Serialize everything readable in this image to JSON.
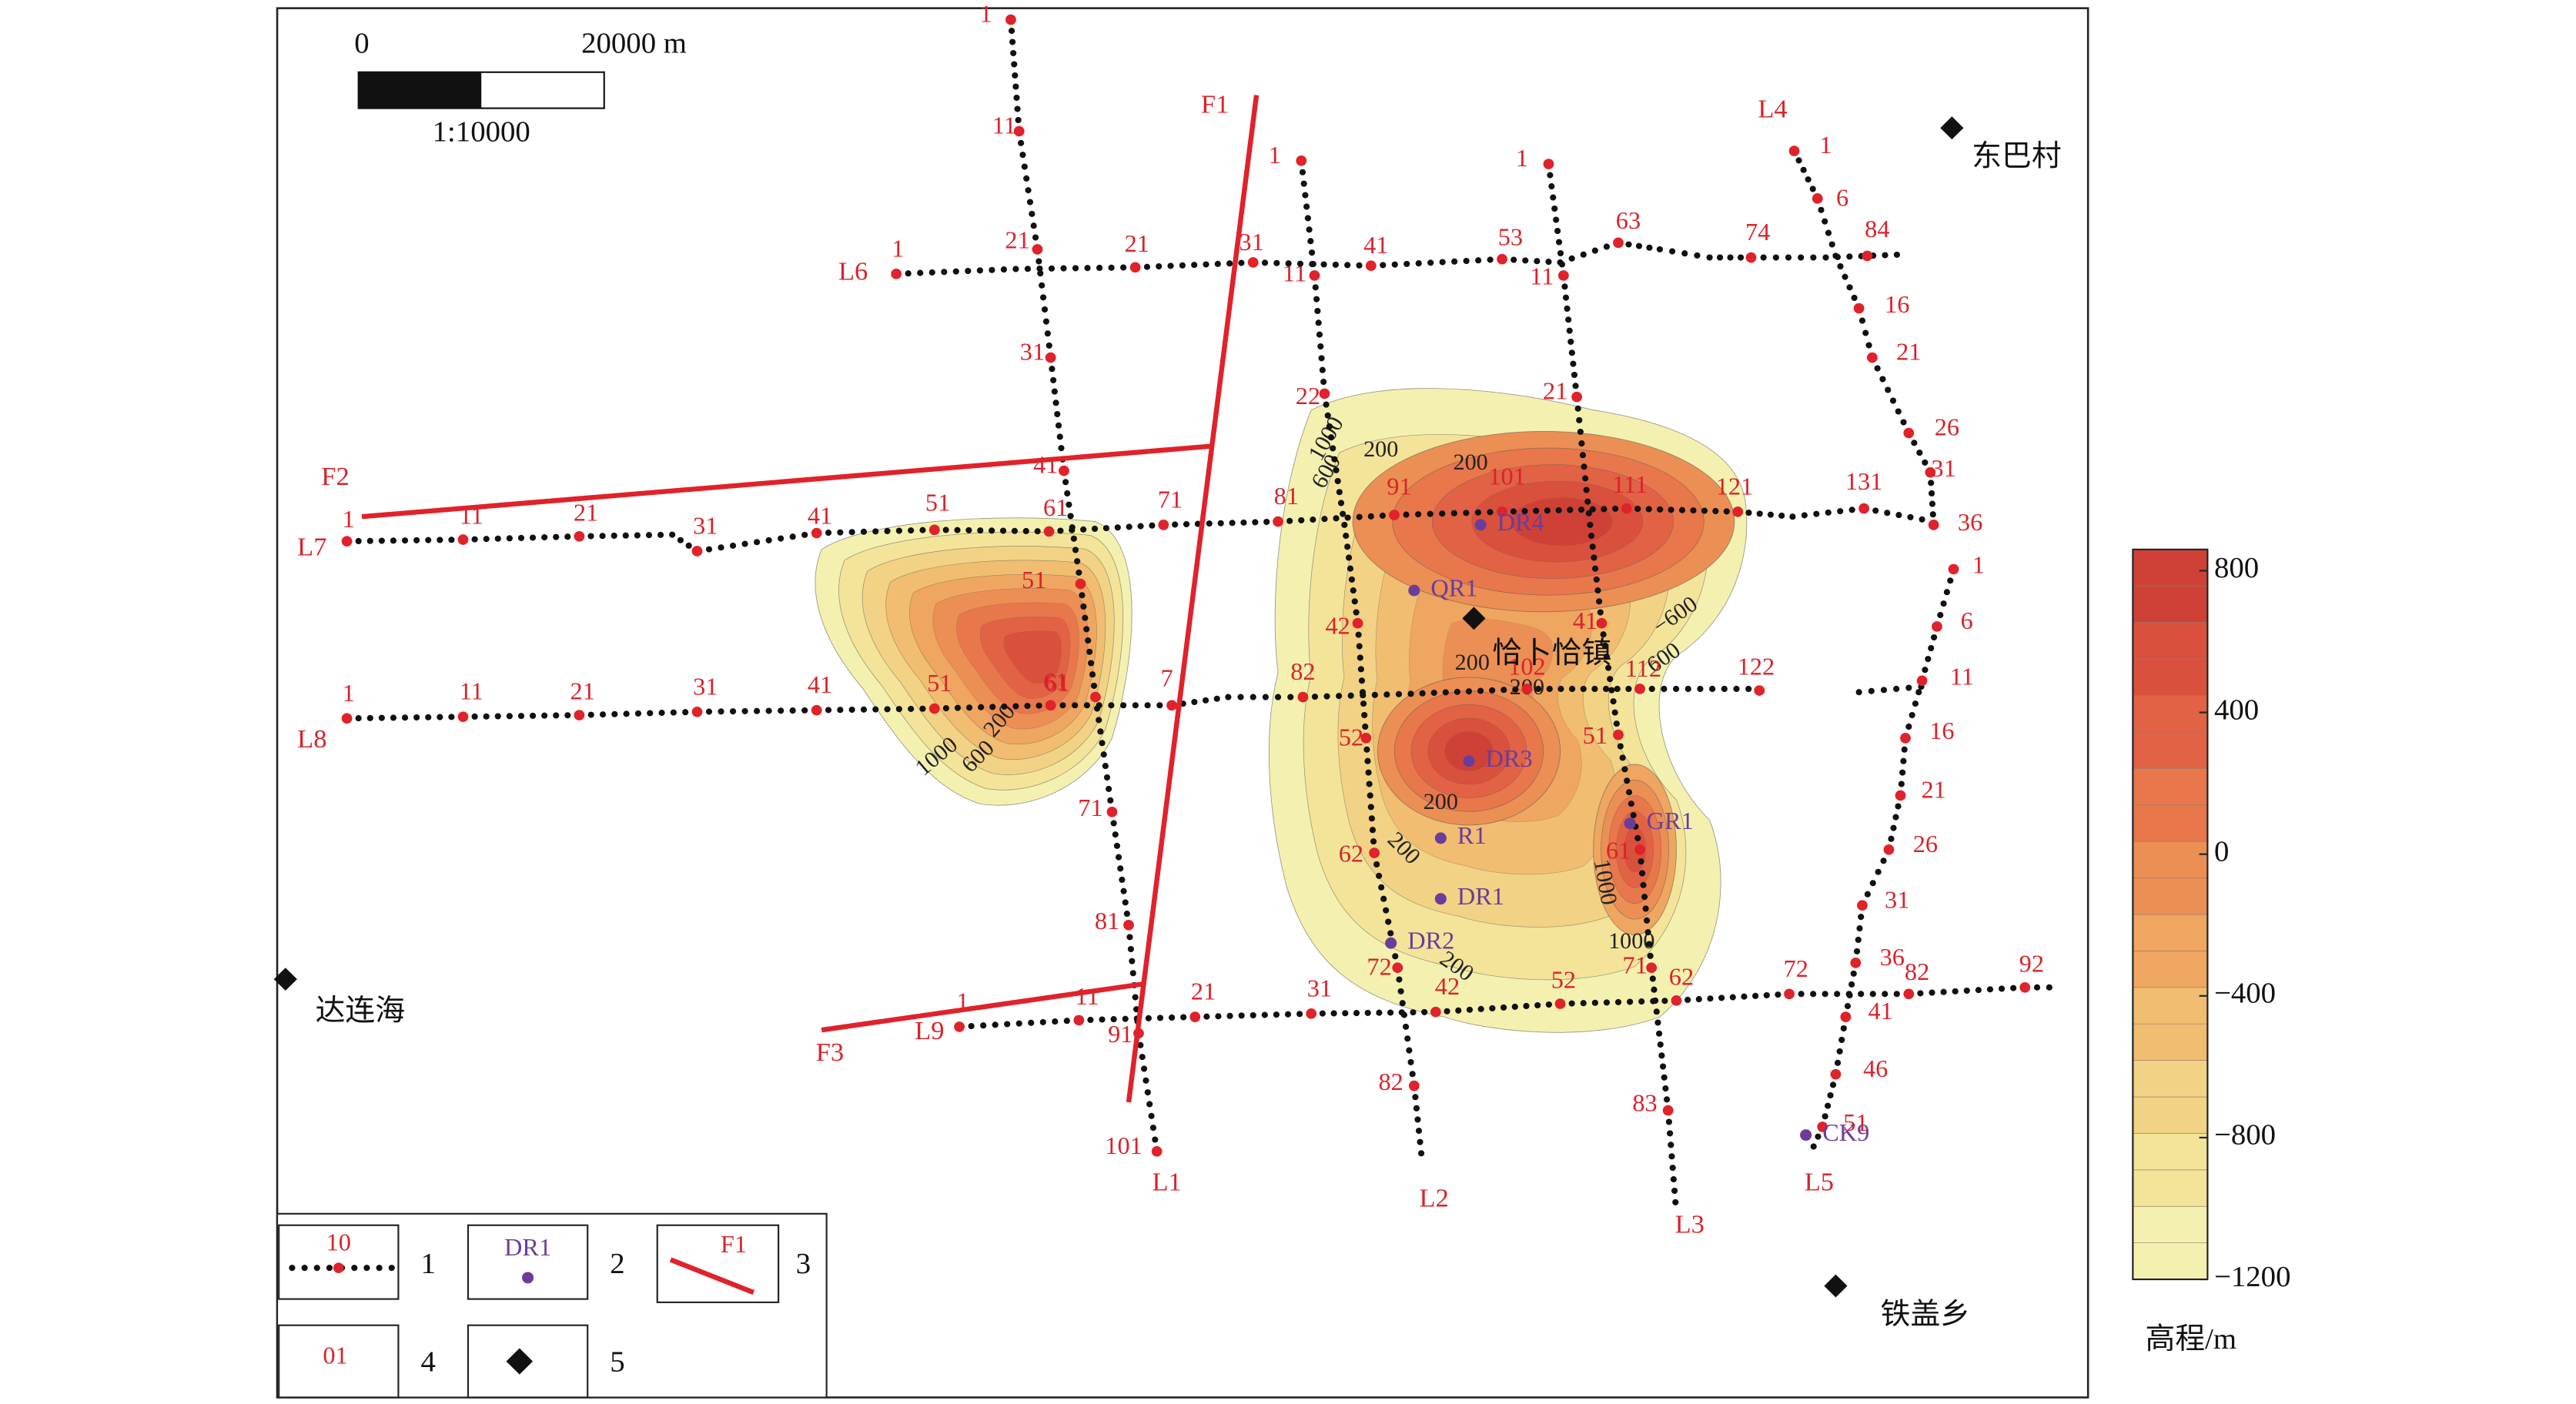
{
  "scale_bar": {
    "start": "0",
    "end": "20000 m",
    "ratio": "1:10000"
  },
  "places": [
    "东巴村",
    "达连海",
    "恰卜恰镇",
    "铁盖乡"
  ],
  "survey_lines": [
    {
      "name": "L1",
      "stations": [
        "1",
        "11",
        "21",
        "31",
        "41",
        "51",
        "61",
        "71",
        "81",
        "91",
        "101"
      ]
    },
    {
      "name": "L2",
      "stations": [
        "1",
        "11",
        "22",
        "42",
        "52",
        "62",
        "72",
        "82"
      ]
    },
    {
      "name": "L3",
      "stations": [
        "1",
        "11",
        "21",
        "41",
        "51",
        "61",
        "71",
        "83"
      ]
    },
    {
      "name": "L4",
      "stations": [
        "1",
        "6",
        "16",
        "21",
        "26",
        "31",
        "36"
      ]
    },
    {
      "name": "L5",
      "stations": [
        "1",
        "6",
        "11",
        "16",
        "21",
        "26",
        "31",
        "36",
        "41",
        "46",
        "51"
      ]
    },
    {
      "name": "L6",
      "stations": [
        "1",
        "21",
        "31",
        "41",
        "53",
        "63",
        "74",
        "84"
      ]
    },
    {
      "name": "L7",
      "stations": [
        "1",
        "11",
        "21",
        "31",
        "41",
        "51",
        "61",
        "71",
        "81",
        "91",
        "101",
        "111",
        "121",
        "131"
      ]
    },
    {
      "name": "L8",
      "stations": [
        "1",
        "11",
        "21",
        "31",
        "41",
        "51",
        "61",
        "7",
        "82",
        "102",
        "112",
        "122"
      ]
    },
    {
      "name": "L9",
      "stations": [
        "1",
        "11",
        "21",
        "31",
        "42",
        "52",
        "62",
        "72",
        "82",
        "92"
      ]
    }
  ],
  "faults": [
    "F1",
    "F2",
    "F3"
  ],
  "wells": [
    "DR4",
    "QR1",
    "DR3",
    "R1",
    "GR1",
    "DR1",
    "DR2",
    "CK9"
  ],
  "contour_labels": [
    "200",
    "600",
    "1000",
    "1000",
    "600",
    "200",
    "200",
    "200",
    "200",
    "200",
    "200",
    "1000",
    "−600",
    "600",
    "1000",
    "200"
  ],
  "colorbar": {
    "title": "高程/m",
    "lim": [
      -1200,
      860
    ],
    "ticks": [
      800,
      400,
      0,
      {
        "value": -400,
        "label": "−400"
      },
      {
        "value": -800,
        "label": "−800"
      },
      {
        "value": -1200,
        "label": "−1200"
      }
    ]
  },
  "legend": [
    {
      "sample": "10",
      "number": "1"
    },
    {
      "sample": "DR1",
      "number": "2"
    },
    {
      "sample": "F1",
      "number": "3"
    },
    {
      "sample": "01",
      "number": "4"
    },
    {
      "number": "5"
    }
  ]
}
